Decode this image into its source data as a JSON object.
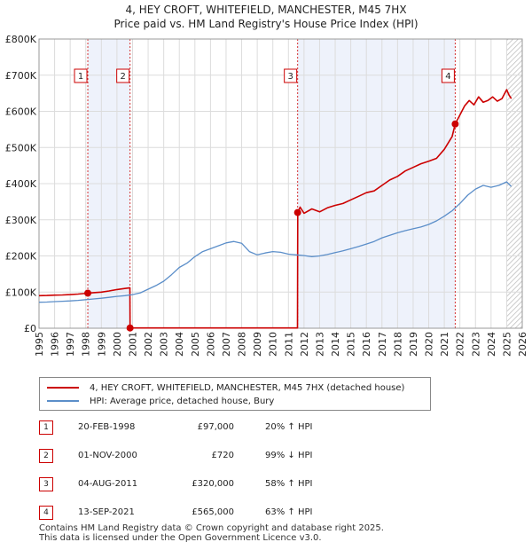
{
  "header": {
    "title_line1": "4, HEY CROFT, WHITEFIELD, MANCHESTER, M45 7HX",
    "title_line2": "Price paid vs. HM Land Registry's House Price Index (HPI)"
  },
  "chart_data": {
    "type": "line",
    "title": "4, HEY CROFT, WHITEFIELD, MANCHESTER, M45 7HX",
    "subtitle": "Price paid vs. HM Land Registry's House Price Index (HPI)",
    "xlabel": "",
    "ylabel": "",
    "xlim": [
      1995,
      2026
    ],
    "ylim": [
      0,
      800000
    ],
    "x_ticks": [
      "1995",
      "1996",
      "1997",
      "1998",
      "1999",
      "2000",
      "2001",
      "2002",
      "2003",
      "2004",
      "2005",
      "2006",
      "2007",
      "2008",
      "2009",
      "2010",
      "2011",
      "2012",
      "2013",
      "2014",
      "2015",
      "2016",
      "2017",
      "2018",
      "2019",
      "2020",
      "2021",
      "2022",
      "2023",
      "2024",
      "2025",
      "2026"
    ],
    "y_ticks": [
      {
        "value": 0,
        "label": "£0"
      },
      {
        "value": 100000,
        "label": "£100K"
      },
      {
        "value": 200000,
        "label": "£200K"
      },
      {
        "value": 300000,
        "label": "£300K"
      },
      {
        "value": 400000,
        "label": "£400K"
      },
      {
        "value": 500000,
        "label": "£500K"
      },
      {
        "value": 600000,
        "label": "£600K"
      },
      {
        "value": 700000,
        "label": "£700K"
      },
      {
        "value": 800000,
        "label": "£800K"
      }
    ],
    "grid": true,
    "legend_position": "below",
    "series": [
      {
        "name": "4, HEY CROFT, WHITEFIELD, MANCHESTER, M45 7HX (detached house)",
        "color": "#cc0000",
        "x": [
          1995.0,
          1995.5,
          1996.0,
          1996.5,
          1997.0,
          1997.5,
          1998.13,
          1998.5,
          1999.0,
          1999.5,
          2000.0,
          2000.5,
          2000.83,
          2000.84,
          2002.0,
          2004.0,
          2006.0,
          2008.0,
          2010.0,
          2011.58,
          2011.6,
          2011.75,
          2012.0,
          2012.5,
          2013.0,
          2013.5,
          2014.0,
          2014.5,
          2015.0,
          2015.5,
          2016.0,
          2016.5,
          2017.0,
          2017.5,
          2018.0,
          2018.5,
          2019.0,
          2019.5,
          2020.0,
          2020.5,
          2021.0,
          2021.5,
          2021.7,
          2022.0,
          2022.3,
          2022.6,
          2022.9,
          2023.2,
          2023.5,
          2023.8,
          2024.1,
          2024.4,
          2024.7,
          2025.0,
          2025.15,
          2025.3
        ],
        "values": [
          90000,
          90500,
          91500,
          92000,
          93000,
          94500,
          97000,
          98500,
          100000,
          103000,
          107000,
          110000,
          112000,
          720,
          720,
          720,
          725,
          728,
          725,
          730,
          320000,
          335000,
          318000,
          330000,
          322000,
          333000,
          340000,
          345000,
          355000,
          365000,
          375000,
          380000,
          395000,
          410000,
          420000,
          435000,
          445000,
          455000,
          462000,
          470000,
          495000,
          530000,
          565000,
          590000,
          615000,
          630000,
          618000,
          640000,
          625000,
          630000,
          640000,
          628000,
          635000,
          660000,
          645000,
          635000
        ]
      },
      {
        "name": "HPI: Average price, detached house, Bury",
        "color": "#5b8ec9",
        "x": [
          1995.0,
          1995.5,
          1996.0,
          1996.5,
          1997.0,
          1997.5,
          1998.0,
          1998.5,
          1999.0,
          1999.5,
          2000.0,
          2000.5,
          2001.0,
          2001.5,
          2002.0,
          2002.5,
          2003.0,
          2003.5,
          2004.0,
          2004.5,
          2005.0,
          2005.5,
          2006.0,
          2006.5,
          2007.0,
          2007.5,
          2008.0,
          2008.5,
          2009.0,
          2009.5,
          2010.0,
          2010.5,
          2011.0,
          2011.5,
          2012.0,
          2012.5,
          2013.0,
          2013.5,
          2014.0,
          2014.5,
          2015.0,
          2015.5,
          2016.0,
          2016.5,
          2017.0,
          2017.5,
          2018.0,
          2018.5,
          2019.0,
          2019.5,
          2020.0,
          2020.5,
          2021.0,
          2021.5,
          2022.0,
          2022.5,
          2023.0,
          2023.5,
          2024.0,
          2024.5,
          2025.0,
          2025.3
        ],
        "values": [
          72000,
          72500,
          73500,
          74500,
          75500,
          77000,
          79000,
          81000,
          83000,
          85500,
          88000,
          90000,
          93000,
          98000,
          108000,
          118000,
          130000,
          148000,
          168000,
          180000,
          198000,
          212000,
          220000,
          228000,
          236000,
          240000,
          235000,
          212000,
          203000,
          208000,
          212000,
          210000,
          205000,
          203000,
          201000,
          198000,
          200000,
          204000,
          209000,
          214000,
          220000,
          226000,
          233000,
          240000,
          250000,
          257000,
          264000,
          270000,
          275000,
          280000,
          287000,
          297000,
          310000,
          325000,
          345000,
          368000,
          385000,
          395000,
          390000,
          395000,
          405000,
          392000
        ]
      }
    ],
    "sales": [
      {
        "marker": "1",
        "x": 1998.13,
        "value": 97000
      },
      {
        "marker": "2",
        "x": 2000.84,
        "value": 720
      },
      {
        "marker": "3",
        "x": 2011.59,
        "value": 320000
      },
      {
        "marker": "4",
        "x": 2021.7,
        "value": 565000
      }
    ]
  },
  "legend": {
    "property_label": "4, HEY CROFT, WHITEFIELD, MANCHESTER, M45 7HX (detached house)",
    "hpi_label": "HPI: Average price, detached house, Bury"
  },
  "sales_table": [
    {
      "marker": "1",
      "date": "20-FEB-1998",
      "price": "£97,000",
      "hpi": "20% ↑ HPI"
    },
    {
      "marker": "2",
      "date": "01-NOV-2000",
      "price": "£720",
      "hpi": "99% ↓ HPI"
    },
    {
      "marker": "3",
      "date": "04-AUG-2011",
      "price": "£320,000",
      "hpi": "58% ↑ HPI"
    },
    {
      "marker": "4",
      "date": "13-SEP-2021",
      "price": "£565,000",
      "hpi": "63% ↑ HPI"
    }
  ],
  "footer": {
    "line1": "Contains HM Land Registry data © Crown copyright and database right 2025.",
    "line2": "This data is licensed under the Open Government Licence v3.0."
  },
  "colors": {
    "property": "#cc0000",
    "hpi": "#5b8ec9",
    "highlight": "#eef2fb",
    "grid": "#dcdcdc"
  }
}
